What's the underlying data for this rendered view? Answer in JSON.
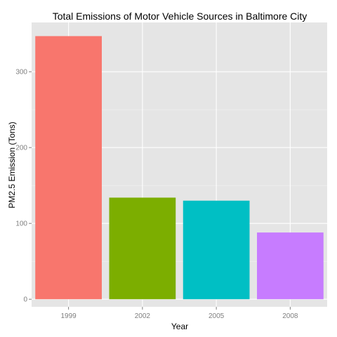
{
  "chart_data": {
    "type": "bar",
    "title": "Total Emissions of Motor Vehicle Sources in Baltimore City",
    "xlabel": "Year",
    "ylabel": "PM2.5 Emission (Tons)",
    "categories": [
      "1999",
      "2002",
      "2005",
      "2008"
    ],
    "values": [
      347,
      134,
      130,
      88
    ],
    "ylim": [
      -10,
      365
    ],
    "yticks": [
      0,
      100,
      200,
      300
    ],
    "grid": true,
    "legend": "none",
    "colors": [
      "#F8766D",
      "#7CAE00",
      "#00BFC4",
      "#C77CFF"
    ],
    "panel_background": "#E5E5E5",
    "grid_color": "#FFFFFF"
  }
}
